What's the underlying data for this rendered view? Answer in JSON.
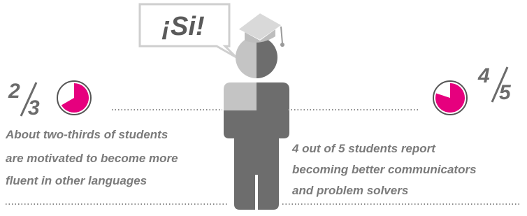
{
  "bubble": {
    "text": "¡Si!"
  },
  "left": {
    "numerator": 2,
    "denominator": 3,
    "lines": [
      "About two-thirds of students",
      "are motivated to become more",
      "fluent in other languages"
    ]
  },
  "right": {
    "numerator": 4,
    "denominator": 5,
    "lines": [
      "4 out of 5 students report",
      "becoming better communicators",
      "and problem solvers"
    ]
  }
}
